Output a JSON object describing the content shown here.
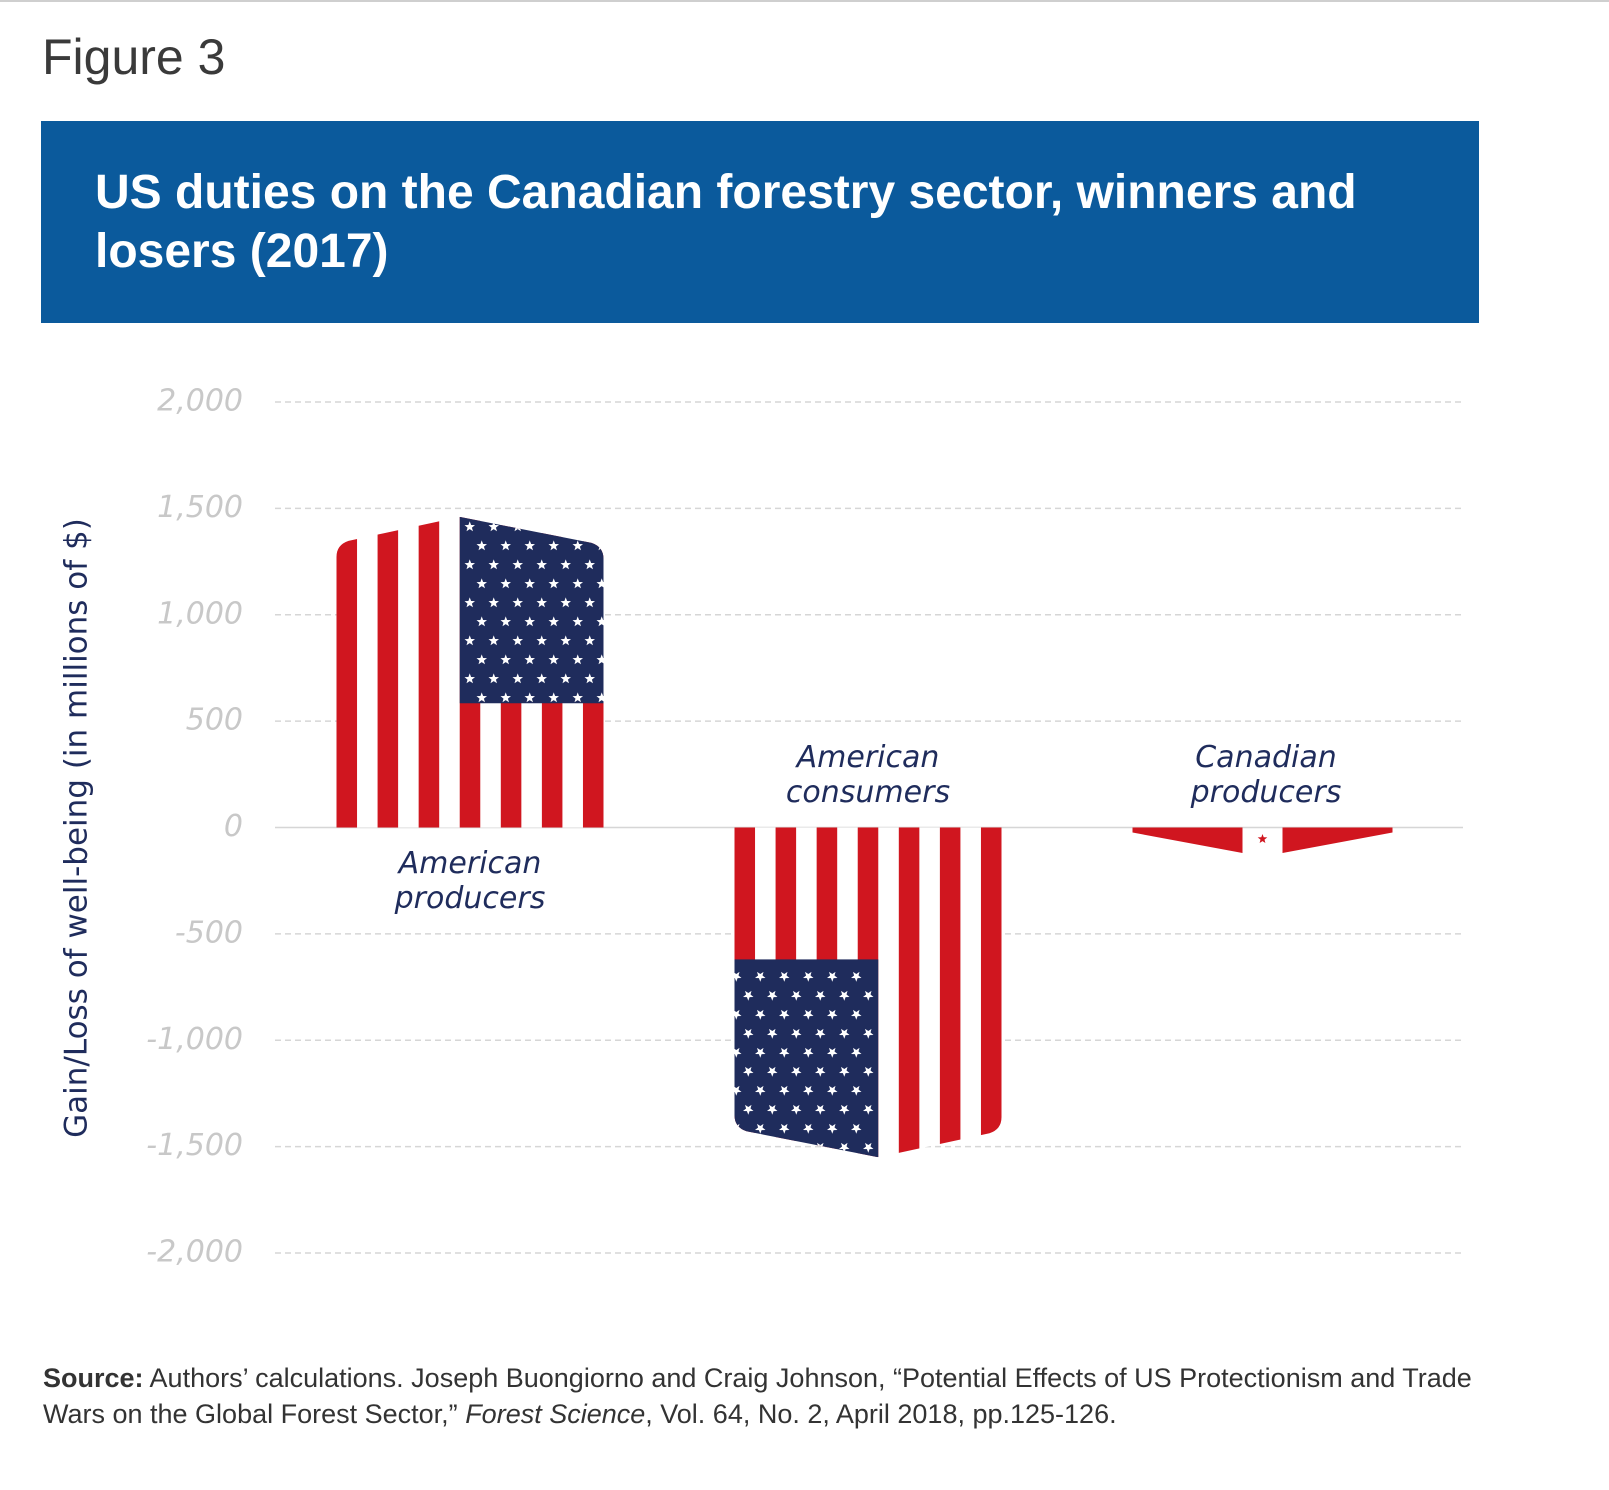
{
  "figure_label": "Figure 3",
  "chart_data": {
    "type": "bar",
    "title": "US duties on the Canadian forestry sector, winners and losers (2017)",
    "y_label": "Gain/Loss of well-being (in millions of $)",
    "categories": [
      "American producers",
      "American consumers",
      "Canadian producers"
    ],
    "values": [
      1460,
      -1550,
      -120
    ],
    "flags": [
      "us",
      "us",
      "canada"
    ],
    "colors": {
      "red": "#d0161f",
      "blue": "#1f2c5c",
      "white": "#ffffff"
    },
    "ylim": [
      -2000,
      2000
    ],
    "yticks": [
      {
        "value": -2000,
        "label": "-2,000"
      },
      {
        "value": -1500,
        "label": "-1,500"
      },
      {
        "value": -1000,
        "label": "-1,000"
      },
      -500,
      0,
      500,
      {
        "value": 1000,
        "label": "1,000"
      },
      {
        "value": 1500,
        "label": "1,500"
      },
      {
        "value": 2000,
        "label": "2,000"
      }
    ],
    "grid": true
  },
  "source": {
    "label": "Source:",
    "text": "Authors’ calculations. Joseph Buongiorno and Craig Johnson, “Potential Effects of US Protectionism and Trade Wars on the Global Forest Sector,”",
    "journal": "Forest Science",
    "details": ", Vol. 64, No. 2, April 2018, pp.125-126."
  }
}
